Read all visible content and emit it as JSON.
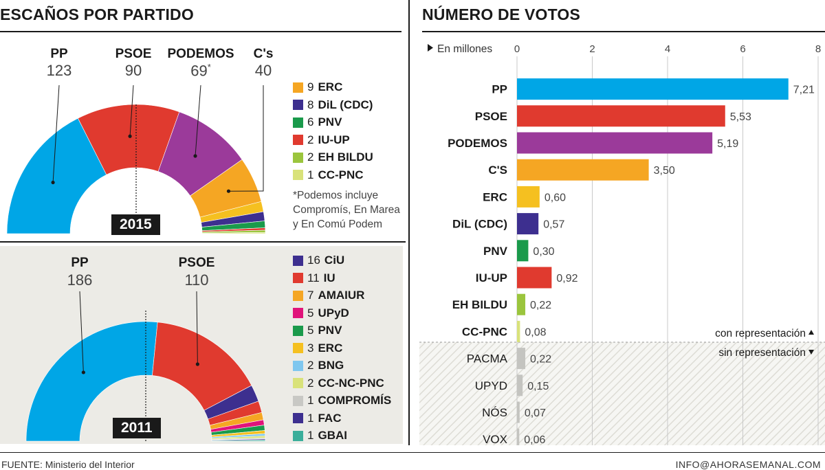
{
  "left": {
    "title": "ESCAÑOS POR PARTIDO",
    "panel_2015": {
      "year": "2015",
      "top_labels": [
        {
          "name": "PP",
          "value": "123",
          "sup": ""
        },
        {
          "name": "PSOE",
          "value": "90",
          "sup": ""
        },
        {
          "name": "PODEMOS",
          "value": "69",
          "sup": "*"
        },
        {
          "name": "C's",
          "value": "40",
          "sup": ""
        }
      ],
      "legend": [
        {
          "value": "9",
          "name": "ERC",
          "color": "#f5a623"
        },
        {
          "value": "8",
          "name": "DiL (CDC)",
          "color": "#3d2f8f"
        },
        {
          "value": "6",
          "name": "PNV",
          "color": "#1a9a4b"
        },
        {
          "value": "2",
          "name": "IU-UP",
          "color": "#e03a2f"
        },
        {
          "value": "2",
          "name": "EH BILDU",
          "color": "#9bc53d"
        },
        {
          "value": "1",
          "name": "CC-PNC",
          "color": "#d9e27a"
        }
      ],
      "note": [
        "*Podemos incluye",
        "Compromís, En Marea",
        "y En Comú Podem"
      ]
    },
    "panel_2011": {
      "year": "2011",
      "top_labels": [
        {
          "name": "PP",
          "value": "186"
        },
        {
          "name": "PSOE",
          "value": "110"
        }
      ],
      "legend": [
        {
          "value": "16",
          "name": "CiU",
          "color": "#3d2f8f"
        },
        {
          "value": "11",
          "name": "IU",
          "color": "#e03a2f"
        },
        {
          "value": "7",
          "name": "AMAIUR",
          "color": "#f5a623"
        },
        {
          "value": "5",
          "name": "UPyD",
          "color": "#e0147a"
        },
        {
          "value": "5",
          "name": "PNV",
          "color": "#1a9a4b"
        },
        {
          "value": "3",
          "name": "ERC",
          "color": "#f5c020"
        },
        {
          "value": "2",
          "name": "BNG",
          "color": "#7fc7ef"
        },
        {
          "value": "2",
          "name": "CC-NC-PNC",
          "color": "#d9e27a"
        },
        {
          "value": "1",
          "name": "COMPROMÍS",
          "color": "#c8c8c4"
        },
        {
          "value": "1",
          "name": "FAC",
          "color": "#3d2f8f"
        },
        {
          "value": "1",
          "name": "GBAI",
          "color": "#3aae9a"
        }
      ]
    }
  },
  "right": {
    "title": "NÚMERO DE VOTOS",
    "unit_label": "En millones",
    "with_rep_label": "con representación",
    "without_rep_label": "sin representación"
  },
  "footer": {
    "source": "FUENTE: Ministerio del Interior",
    "contact": "INFO@AHORASEMANAL.COM"
  },
  "chart_data": [
    {
      "type": "pie",
      "subtype": "hemicycle",
      "year": "2015",
      "categories": [
        "PP",
        "PSOE",
        "PODEMOS",
        "C's",
        "ERC",
        "DiL (CDC)",
        "PNV",
        "IU-UP",
        "EH BILDU",
        "CC-PNC"
      ],
      "values": [
        123,
        90,
        69,
        40,
        9,
        8,
        6,
        2,
        2,
        1
      ],
      "colors": [
        "#00a6e6",
        "#e03a2f",
        "#9b3a9a",
        "#f5a623",
        "#f5c020",
        "#3d2f8f",
        "#1a9a4b",
        "#e03a2f",
        "#9bc53d",
        "#d9e27a"
      ]
    },
    {
      "type": "pie",
      "subtype": "hemicycle",
      "year": "2011",
      "categories": [
        "PP",
        "PSOE",
        "CiU",
        "IU",
        "AMAIUR",
        "UPyD",
        "PNV",
        "ERC",
        "BNG",
        "CC-NC-PNC",
        "COMPROMÍS",
        "FAC",
        "GBAI"
      ],
      "values": [
        186,
        110,
        16,
        11,
        7,
        5,
        5,
        3,
        2,
        2,
        1,
        1,
        1
      ],
      "colors": [
        "#00a6e6",
        "#e03a2f",
        "#3d2f8f",
        "#e03a2f",
        "#f5a623",
        "#e0147a",
        "#1a9a4b",
        "#f5c020",
        "#7fc7ef",
        "#d9e27a",
        "#c8c8c4",
        "#3d2f8f",
        "#3aae9a"
      ]
    },
    {
      "type": "bar",
      "orientation": "horizontal",
      "title": "NÚMERO DE VOTOS",
      "xlabel": "En millones",
      "xlim": [
        0,
        8
      ],
      "xticks": [
        "0",
        "2",
        "4",
        "6",
        "8"
      ],
      "grid": true,
      "categories": [
        "PP",
        "PSOE",
        "PODEMOS",
        "C'S",
        "ERC",
        "DiL (CDC)",
        "PNV",
        "IU-UP",
        "EH BILDU",
        "CC-PNC",
        "PACMA",
        "UPYD",
        "NÓS",
        "VOX"
      ],
      "values": [
        7.21,
        5.53,
        5.19,
        3.5,
        0.6,
        0.57,
        0.3,
        0.92,
        0.22,
        0.08,
        0.22,
        0.15,
        0.07,
        0.06
      ],
      "value_labels": [
        "7,21",
        "5,53",
        "5,19",
        "3,50",
        "0,60",
        "0,57",
        "0,30",
        "0,92",
        "0,22",
        "0,08",
        "0,22",
        "0,15",
        "0,07",
        "0,06"
      ],
      "colors": [
        "#00a6e6",
        "#e03a2f",
        "#9b3a9a",
        "#f5a623",
        "#f5c020",
        "#3d2f8f",
        "#1a9a4b",
        "#e03a2f",
        "#9bc53d",
        "#d9e27a",
        "#c4c4c0",
        "#c4c4c0",
        "#c4c4c0",
        "#c4c4c0"
      ],
      "with_representation": [
        true,
        true,
        true,
        true,
        true,
        true,
        true,
        true,
        true,
        true,
        false,
        false,
        false,
        false
      ]
    }
  ]
}
